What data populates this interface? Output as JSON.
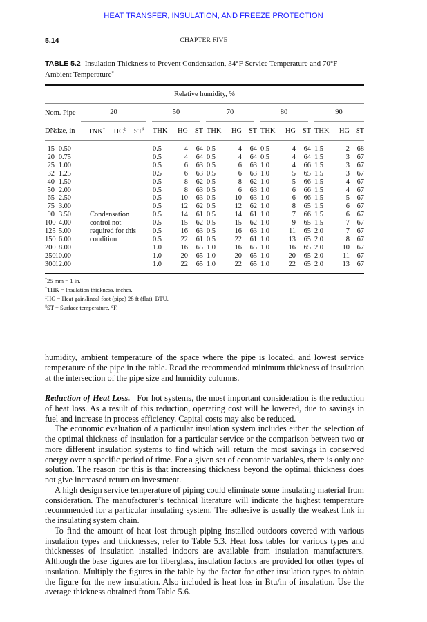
{
  "running_head": "HEAT TRANSFER, INSULATION, AND FREEZE PROTECTION",
  "page_number": "5.14",
  "chapter": "CHAPTER FIVE",
  "table": {
    "label": "TABLE 5.2",
    "title": "Insulation Thickness to Prevent Condensation, 34°F Service Temperature and 70°F Ambient Temperature",
    "title_mark": "*",
    "super_header": "Relative humidity, %",
    "nom_pipe": "Nom. Pipe",
    "humidity_groups": [
      "20",
      "50",
      "70",
      "80",
      "90"
    ],
    "sub_headers": {
      "dn": "DN",
      "size": "size, in",
      "tnk": "TNK",
      "tnk_mark": "†",
      "hc": "HC",
      "hc_mark": "‡",
      "st": "ST",
      "st_mark": "§",
      "thk": "THK",
      "hg": "HG",
      "st2": "ST"
    },
    "note_20": [
      "Condensation",
      "control not",
      "required for this",
      "condition"
    ],
    "rows": [
      [
        "15",
        "0.50",
        "0.5",
        "4",
        "64",
        "0.5",
        "4",
        "64",
        "0.5",
        "4",
        "64",
        "1.5",
        "2",
        "68"
      ],
      [
        "20",
        "0.75",
        "0.5",
        "4",
        "64",
        "0.5",
        "4",
        "64",
        "0.5",
        "4",
        "64",
        "1.5",
        "3",
        "67"
      ],
      [
        "25",
        "1.00",
        "0.5",
        "6",
        "63",
        "0.5",
        "6",
        "63",
        "1.0",
        "4",
        "66",
        "1.5",
        "3",
        "67"
      ],
      [
        "32",
        "1.25",
        "0.5",
        "6",
        "63",
        "0.5",
        "6",
        "63",
        "1.0",
        "5",
        "65",
        "1.5",
        "3",
        "67"
      ],
      [
        "40",
        "1.50",
        "0.5",
        "8",
        "62",
        "0.5",
        "8",
        "62",
        "1.0",
        "5",
        "66",
        "1.5",
        "4",
        "67"
      ],
      [
        "50",
        "2.00",
        "0.5",
        "8",
        "63",
        "0.5",
        "6",
        "63",
        "1.0",
        "6",
        "66",
        "1.5",
        "4",
        "67"
      ],
      [
        "65",
        "2.50",
        "0.5",
        "10",
        "63",
        "0.5",
        "10",
        "63",
        "1.0",
        "6",
        "66",
        "1.5",
        "5",
        "67"
      ],
      [
        "75",
        "3.00",
        "0.5",
        "12",
        "62",
        "0.5",
        "12",
        "62",
        "1.0",
        "8",
        "65",
        "1.5",
        "6",
        "67"
      ],
      [
        "90",
        "3.50",
        "0.5",
        "14",
        "61",
        "0.5",
        "14",
        "61",
        "1.0",
        "7",
        "66",
        "1.5",
        "6",
        "67"
      ],
      [
        "100",
        "4.00",
        "0.5",
        "15",
        "62",
        "0.5",
        "15",
        "62",
        "1.0",
        "9",
        "65",
        "1.5",
        "7",
        "67"
      ],
      [
        "125",
        "5.00",
        "0.5",
        "16",
        "63",
        "0.5",
        "16",
        "63",
        "1.0",
        "11",
        "65",
        "2.0",
        "7",
        "67"
      ],
      [
        "150",
        "6.00",
        "0.5",
        "22",
        "61",
        "0.5",
        "22",
        "61",
        "1.0",
        "13",
        "65",
        "2.0",
        "8",
        "67"
      ],
      [
        "200",
        "8.00",
        "1.0",
        "16",
        "65",
        "1.0",
        "16",
        "65",
        "1.0",
        "16",
        "65",
        "2.0",
        "10",
        "67"
      ],
      [
        "250",
        "10.00",
        "1.0",
        "20",
        "65",
        "1.0",
        "20",
        "65",
        "1.0",
        "20",
        "65",
        "2.0",
        "11",
        "67"
      ],
      [
        "300",
        "12.00",
        "1.0",
        "22",
        "65",
        "1.0",
        "22",
        "65",
        "1.0",
        "22",
        "65",
        "2.0",
        "13",
        "67"
      ]
    ],
    "footnotes": [
      {
        "mark": "*",
        "text": "25 mm = 1 in."
      },
      {
        "mark": "†",
        "text": "THK = Insulation thickness, inches."
      },
      {
        "mark": "‡",
        "text": "HG = Heat gain/lineal foot (pipe) 28 ft (flat), BTU."
      },
      {
        "mark": "§",
        "text": "ST = Surface temperature, °F."
      }
    ]
  },
  "body": {
    "p1": "humidity, ambient temperature of the space where the pipe is located, and lowest service temperature of the pipe in the table. Read the recommended minimum thickness of insulation at the intersection of the pipe size and humidity columns.",
    "section_heading": "Reduction of Heat Loss.",
    "p2": "For hot systems, the most important consideration is the reduction of heat loss. As a result of this reduction, operating cost will be lowered, due to savings in fuel and increase in process efficiency. Capital costs may also be reduced.",
    "p3": "The economic evaluation of a particular insulation system includes either the selection of the optimal thickness of insulation for a particular service or the comparison between two or more different insulation systems to find which will return the most savings in conserved energy over a specific period of time. For a given set of economic variables, there is only one solution. The reason for this is that increasing thickness beyond the optimal thickness does not give increased return on investment.",
    "p4": "A high design service temperature of piping could eliminate some insulating material from consideration. The manufacturer’s technical literature will indicate the highest temperature recommended for a particular insulating system. The adhesive is usually the weakest link in the insulating system chain.",
    "p5": "To find the amount of heat lost through piping installed outdoors covered with various insulation types and thicknesses, refer to Table 5.3. Heat loss tables for various types and thicknesses of insulation installed indoors are available from insulation manufacturers. Although the base figures are for fiberglass, insulation factors are provided for other types of insulation. Multiply the figures in the table by the factor for other insulation types to obtain the figure for the new insulation. Also included is heat loss in Btu/in of insulation. Use the average thickness obtained from Table 5.6."
  },
  "colors": {
    "running_head": "#1a1aff",
    "text": "#111111"
  }
}
